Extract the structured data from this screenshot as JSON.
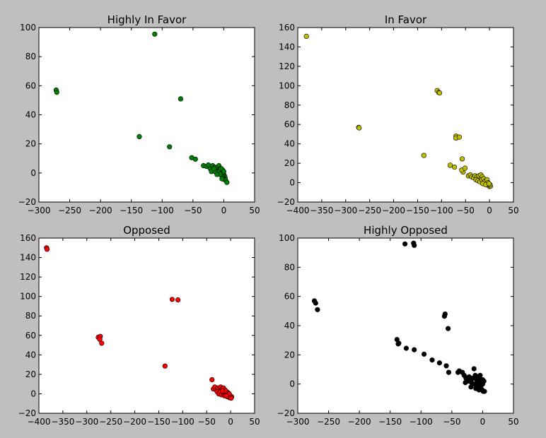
{
  "chart_data": [
    {
      "type": "scatter",
      "title": "Highly In Favor",
      "color": "#007f00",
      "xlim": [
        -300,
        50
      ],
      "ylim": [
        -20,
        100
      ],
      "xticks": [
        -300,
        -250,
        -200,
        -150,
        -100,
        -50,
        0,
        50
      ],
      "yticks": [
        -20,
        0,
        20,
        40,
        60,
        80,
        100
      ],
      "points": [
        [
          -272,
          57
        ],
        [
          -271,
          55.5
        ],
        [
          -112,
          95.5
        ],
        [
          -70,
          51
        ],
        [
          -137,
          25
        ],
        [
          -88,
          18
        ],
        [
          -52,
          10.5
        ],
        [
          -46,
          9.5
        ],
        [
          -33,
          5
        ],
        [
          -28,
          4.5
        ],
        [
          -25,
          5.5
        ],
        [
          -22,
          3
        ],
        [
          -20,
          1
        ],
        [
          -18,
          5
        ],
        [
          -15,
          4
        ],
        [
          -12,
          2.5
        ],
        [
          -10,
          4
        ],
        [
          -8,
          5
        ],
        [
          -6,
          3
        ],
        [
          -5,
          1
        ],
        [
          -4,
          0
        ],
        [
          -3,
          -1
        ],
        [
          -2,
          -2
        ],
        [
          -1,
          0
        ],
        [
          0,
          -1
        ],
        [
          1,
          -2
        ],
        [
          2,
          -3
        ],
        [
          -1,
          -3
        ],
        [
          0,
          -4
        ],
        [
          1,
          -4.5
        ],
        [
          3,
          -5
        ],
        [
          5,
          -6.5
        ],
        [
          -7,
          2
        ],
        [
          -9,
          0.5
        ],
        [
          -14,
          1
        ],
        [
          -16,
          3
        ],
        [
          -2,
          2
        ],
        [
          -4,
          3
        ],
        [
          -6,
          -1
        ],
        [
          -3,
          -4
        ],
        [
          0,
          1
        ],
        [
          -11,
          -1
        ]
      ]
    },
    {
      "type": "scatter",
      "title": "In Favor",
      "color": "#bfbf00",
      "xlim": [
        -400,
        50
      ],
      "ylim": [
        -20,
        160
      ],
      "xticks": [
        -400,
        -350,
        -300,
        -250,
        -200,
        -150,
        -100,
        -50,
        0,
        50
      ],
      "yticks": [
        -20,
        0,
        20,
        40,
        60,
        80,
        100,
        120,
        140,
        160
      ],
      "points": [
        [
          -382,
          151
        ],
        [
          -273,
          57
        ],
        [
          -272,
          56.5
        ],
        [
          -109,
          95
        ],
        [
          -106,
          93
        ],
        [
          -104,
          92.5
        ],
        [
          -70,
          48
        ],
        [
          -70,
          46
        ],
        [
          -63,
          47
        ],
        [
          -137,
          28
        ],
        [
          -82,
          18
        ],
        [
          -73,
          16
        ],
        [
          -57,
          24.5
        ],
        [
          -55,
          11
        ],
        [
          -58,
          13
        ],
        [
          -51,
          15
        ],
        [
          -44,
          7
        ],
        [
          -40,
          8
        ],
        [
          -37,
          6
        ],
        [
          -33,
          5
        ],
        [
          -30,
          7
        ],
        [
          -26,
          6
        ],
        [
          -22,
          7
        ],
        [
          -18,
          8
        ],
        [
          -15,
          6
        ],
        [
          -28,
          3
        ],
        [
          -24,
          2
        ],
        [
          -20,
          1
        ],
        [
          -16,
          3
        ],
        [
          -12,
          4
        ],
        [
          -8,
          2
        ],
        [
          -6,
          0
        ],
        [
          -4,
          -1
        ],
        [
          -2,
          -3
        ],
        [
          0,
          -4
        ],
        [
          2,
          -3.5
        ],
        [
          -10,
          1
        ],
        [
          -5,
          3
        ],
        [
          -3,
          0
        ],
        [
          1,
          -2
        ],
        [
          -14,
          -1
        ],
        [
          -8,
          -2
        ],
        [
          -1,
          -1
        ]
      ]
    },
    {
      "type": "scatter",
      "title": "Opposed",
      "color": "#ff0000",
      "xlim": [
        -400,
        50
      ],
      "ylim": [
        -20,
        160
      ],
      "xticks": [
        -400,
        -350,
        -300,
        -250,
        -200,
        -150,
        -100,
        -50,
        0,
        50
      ],
      "yticks": [
        -20,
        0,
        20,
        40,
        60,
        80,
        100,
        120,
        140,
        160
      ],
      "points": [
        [
          -384,
          150
        ],
        [
          -383,
          148.5
        ],
        [
          -276,
          58
        ],
        [
          -272,
          59
        ],
        [
          -273,
          56
        ],
        [
          -269,
          52
        ],
        [
          -122,
          97
        ],
        [
          -110,
          96.5
        ],
        [
          -137,
          28.5
        ],
        [
          -39,
          14.5
        ],
        [
          -36,
          5
        ],
        [
          -33,
          7
        ],
        [
          -30,
          4
        ],
        [
          -27,
          6
        ],
        [
          -24,
          5
        ],
        [
          -21,
          7
        ],
        [
          -18,
          5
        ],
        [
          -15,
          6
        ],
        [
          -12,
          4
        ],
        [
          -28,
          2
        ],
        [
          -25,
          0
        ],
        [
          -22,
          2
        ],
        [
          -19,
          -1
        ],
        [
          -16,
          1
        ],
        [
          -13,
          -2
        ],
        [
          -10,
          0
        ],
        [
          -8,
          2
        ],
        [
          -6,
          -1
        ],
        [
          -4,
          -3
        ],
        [
          -2,
          -4
        ],
        [
          0,
          -4
        ],
        [
          2,
          -3
        ],
        [
          -5,
          1
        ],
        [
          -1,
          -2
        ],
        [
          -11,
          3
        ],
        [
          -7,
          -3
        ],
        [
          -3,
          0
        ],
        [
          1,
          -4.5
        ],
        [
          -17,
          3
        ],
        [
          -9,
          -2
        ]
      ]
    },
    {
      "type": "scatter",
      "title": "Highly Opposed",
      "color": "#000000",
      "xlim": [
        -300,
        50
      ],
      "ylim": [
        -20,
        100
      ],
      "xticks": [
        -300,
        -250,
        -200,
        -150,
        -100,
        -50,
        0,
        50
      ],
      "yticks": [
        -20,
        0,
        20,
        40,
        60,
        80,
        100
      ],
      "points": [
        [
          -273,
          57
        ],
        [
          -271,
          55.5
        ],
        [
          -268,
          51
        ],
        [
          -126,
          96
        ],
        [
          -112,
          96.5
        ],
        [
          -111,
          95
        ],
        [
          -61,
          48
        ],
        [
          -62,
          46.5
        ],
        [
          -56,
          38
        ],
        [
          -139,
          30.5
        ],
        [
          -137,
          27.5
        ],
        [
          -136,
          28
        ],
        [
          -124,
          24.5
        ],
        [
          -111,
          23.5
        ],
        [
          -95,
          20.5
        ],
        [
          -82,
          16.5
        ],
        [
          -70,
          14.5
        ],
        [
          -59,
          12.5
        ],
        [
          -55,
          8
        ],
        [
          -40,
          8
        ],
        [
          -38,
          9
        ],
        [
          -33,
          8
        ],
        [
          -30,
          6
        ],
        [
          -27,
          4
        ],
        [
          -24,
          2
        ],
        [
          -22,
          5
        ],
        [
          -20,
          3
        ],
        [
          -18,
          1
        ],
        [
          -16,
          4
        ],
        [
          -14,
          10.5
        ],
        [
          -12,
          6
        ],
        [
          -10,
          3
        ],
        [
          -8,
          5
        ],
        [
          -6,
          1
        ],
        [
          -4,
          6
        ],
        [
          -2,
          3
        ],
        [
          0,
          0
        ],
        [
          2,
          2
        ],
        [
          -3,
          -2
        ],
        [
          -1,
          -4
        ],
        [
          1,
          -5
        ],
        [
          3,
          -5
        ],
        [
          -9,
          -2
        ],
        [
          -6,
          -4
        ],
        [
          -13,
          0
        ],
        [
          -11,
          -3
        ],
        [
          -5,
          -1
        ],
        [
          0,
          3
        ],
        [
          -28,
          1
        ],
        [
          -19,
          -2
        ],
        [
          -7,
          2
        ],
        [
          -2,
          0
        ]
      ]
    }
  ]
}
